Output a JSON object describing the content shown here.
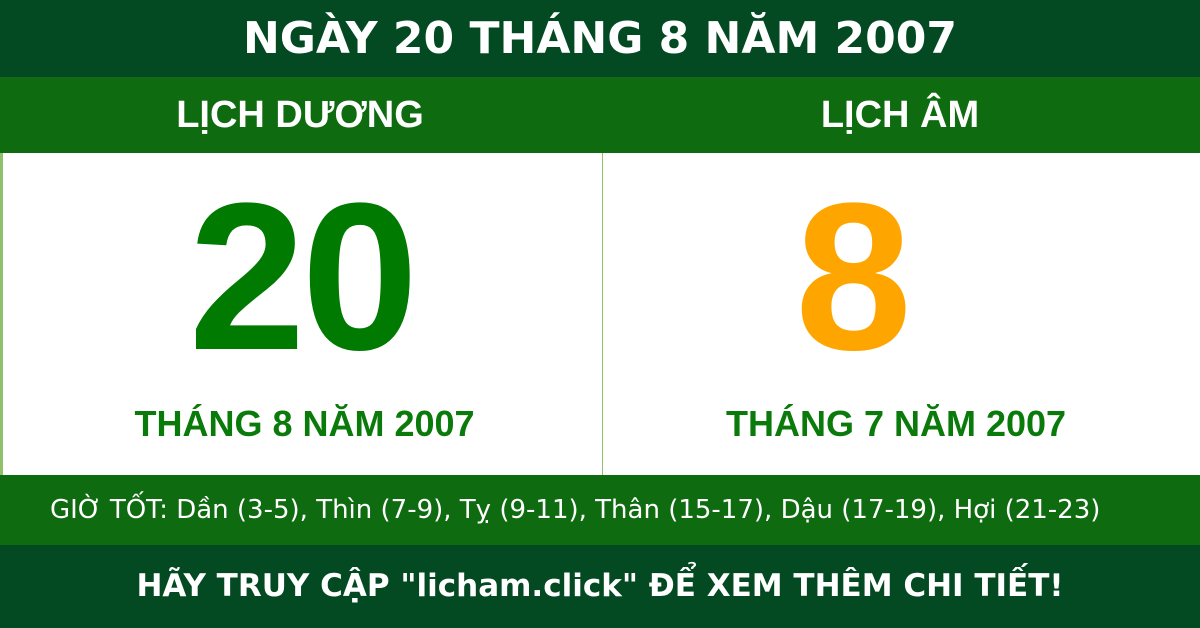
{
  "header": {
    "title": "NGÀY 20 THÁNG 8 NĂM 2007"
  },
  "solar": {
    "label": "LỊCH DƯƠNG",
    "day": "20",
    "month_year": "THÁNG 8 NĂM 2007"
  },
  "lunar": {
    "label": "LỊCH ÂM",
    "day": "8",
    "month_year": "THÁNG 7 NĂM 2007"
  },
  "good_hours": "GIỜ TỐT: Dần (3-5), Thìn (7-9), Tỵ (9-11), Thân (15-17), Dậu (17-19), Hợi (21-23)",
  "footer": {
    "text": "HÃY TRUY CẬP \"licham.click\" ĐỂ XEM THÊM CHI TIẾT!"
  },
  "colors": {
    "header_bg": "#034a22",
    "band_bg": "#0f6b10",
    "solar_day": "#007a00",
    "lunar_day": "#ffa500"
  }
}
